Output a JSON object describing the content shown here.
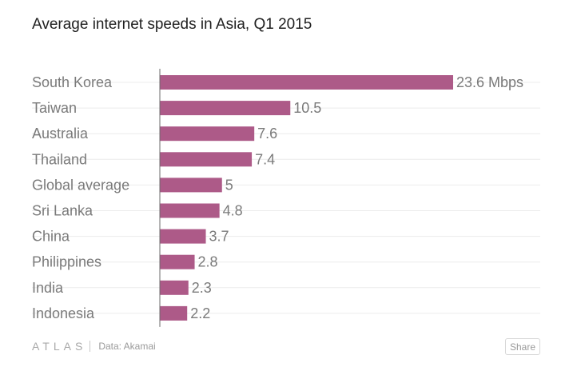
{
  "title": "Average internet speeds in Asia, Q1 2015",
  "footer": {
    "brand": "ATLAS",
    "source": "Data: Akamai",
    "share_label": "Share"
  },
  "colors": {
    "bar": "#ad5a88"
  },
  "chart_data": {
    "type": "bar",
    "orientation": "horizontal",
    "title": "Average internet speeds in Asia, Q1 2015",
    "xlabel": "",
    "ylabel": "",
    "unit": "Mbps",
    "categories": [
      "South Korea",
      "Taiwan",
      "Australia",
      "Thailand",
      "Global average",
      "Sri Lanka",
      "China",
      "Philippines",
      "India",
      "Indonesia"
    ],
    "values": [
      23.6,
      10.5,
      7.6,
      7.4,
      5,
      4.8,
      3.7,
      2.8,
      2.3,
      2.2
    ],
    "value_labels": [
      "23.6 Mbps",
      "10.5",
      "7.6",
      "7.4",
      "5",
      "4.8",
      "3.7",
      "2.8",
      "2.3",
      "2.2"
    ],
    "xlim": [
      0,
      23.6
    ],
    "grid": true,
    "legend": "none"
  }
}
